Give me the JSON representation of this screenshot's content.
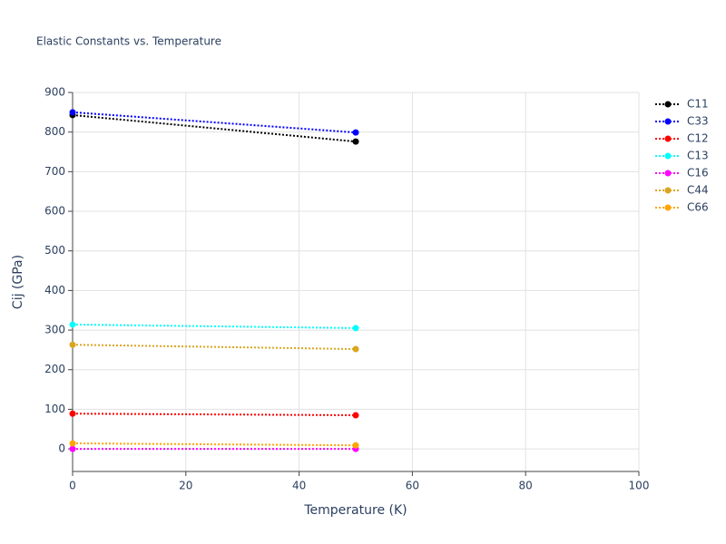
{
  "chart_data": {
    "type": "line",
    "title": "Elastic Constants vs. Temperature",
    "x_label": "Temperature (K)",
    "y_label": "Cij (GPa)",
    "x": [
      0,
      50
    ],
    "series": [
      {
        "name": "C11",
        "color": "#000000",
        "values": [
          843,
          776
        ]
      },
      {
        "name": "C33",
        "color": "#0000ff",
        "values": [
          850,
          799
        ]
      },
      {
        "name": "C12",
        "color": "#ff0000",
        "values": [
          89,
          85
        ]
      },
      {
        "name": "C13",
        "color": "#00ffff",
        "values": [
          314,
          305
        ]
      },
      {
        "name": "C16",
        "color": "#ff00ff",
        "values": [
          0,
          0
        ]
      },
      {
        "name": "C44",
        "color": "#daa520",
        "values": [
          263,
          252
        ]
      },
      {
        "name": "C66",
        "color": "#ffa500",
        "values": [
          14,
          9
        ]
      }
    ],
    "xlim": [
      0,
      100
    ],
    "xticks": [
      0,
      20,
      40,
      60,
      80,
      100
    ],
    "ylim": [
      -57,
      900
    ],
    "yticks": [
      0,
      100,
      200,
      300,
      400,
      500,
      600,
      700,
      800,
      900
    ],
    "grid": true,
    "legend": "right"
  }
}
